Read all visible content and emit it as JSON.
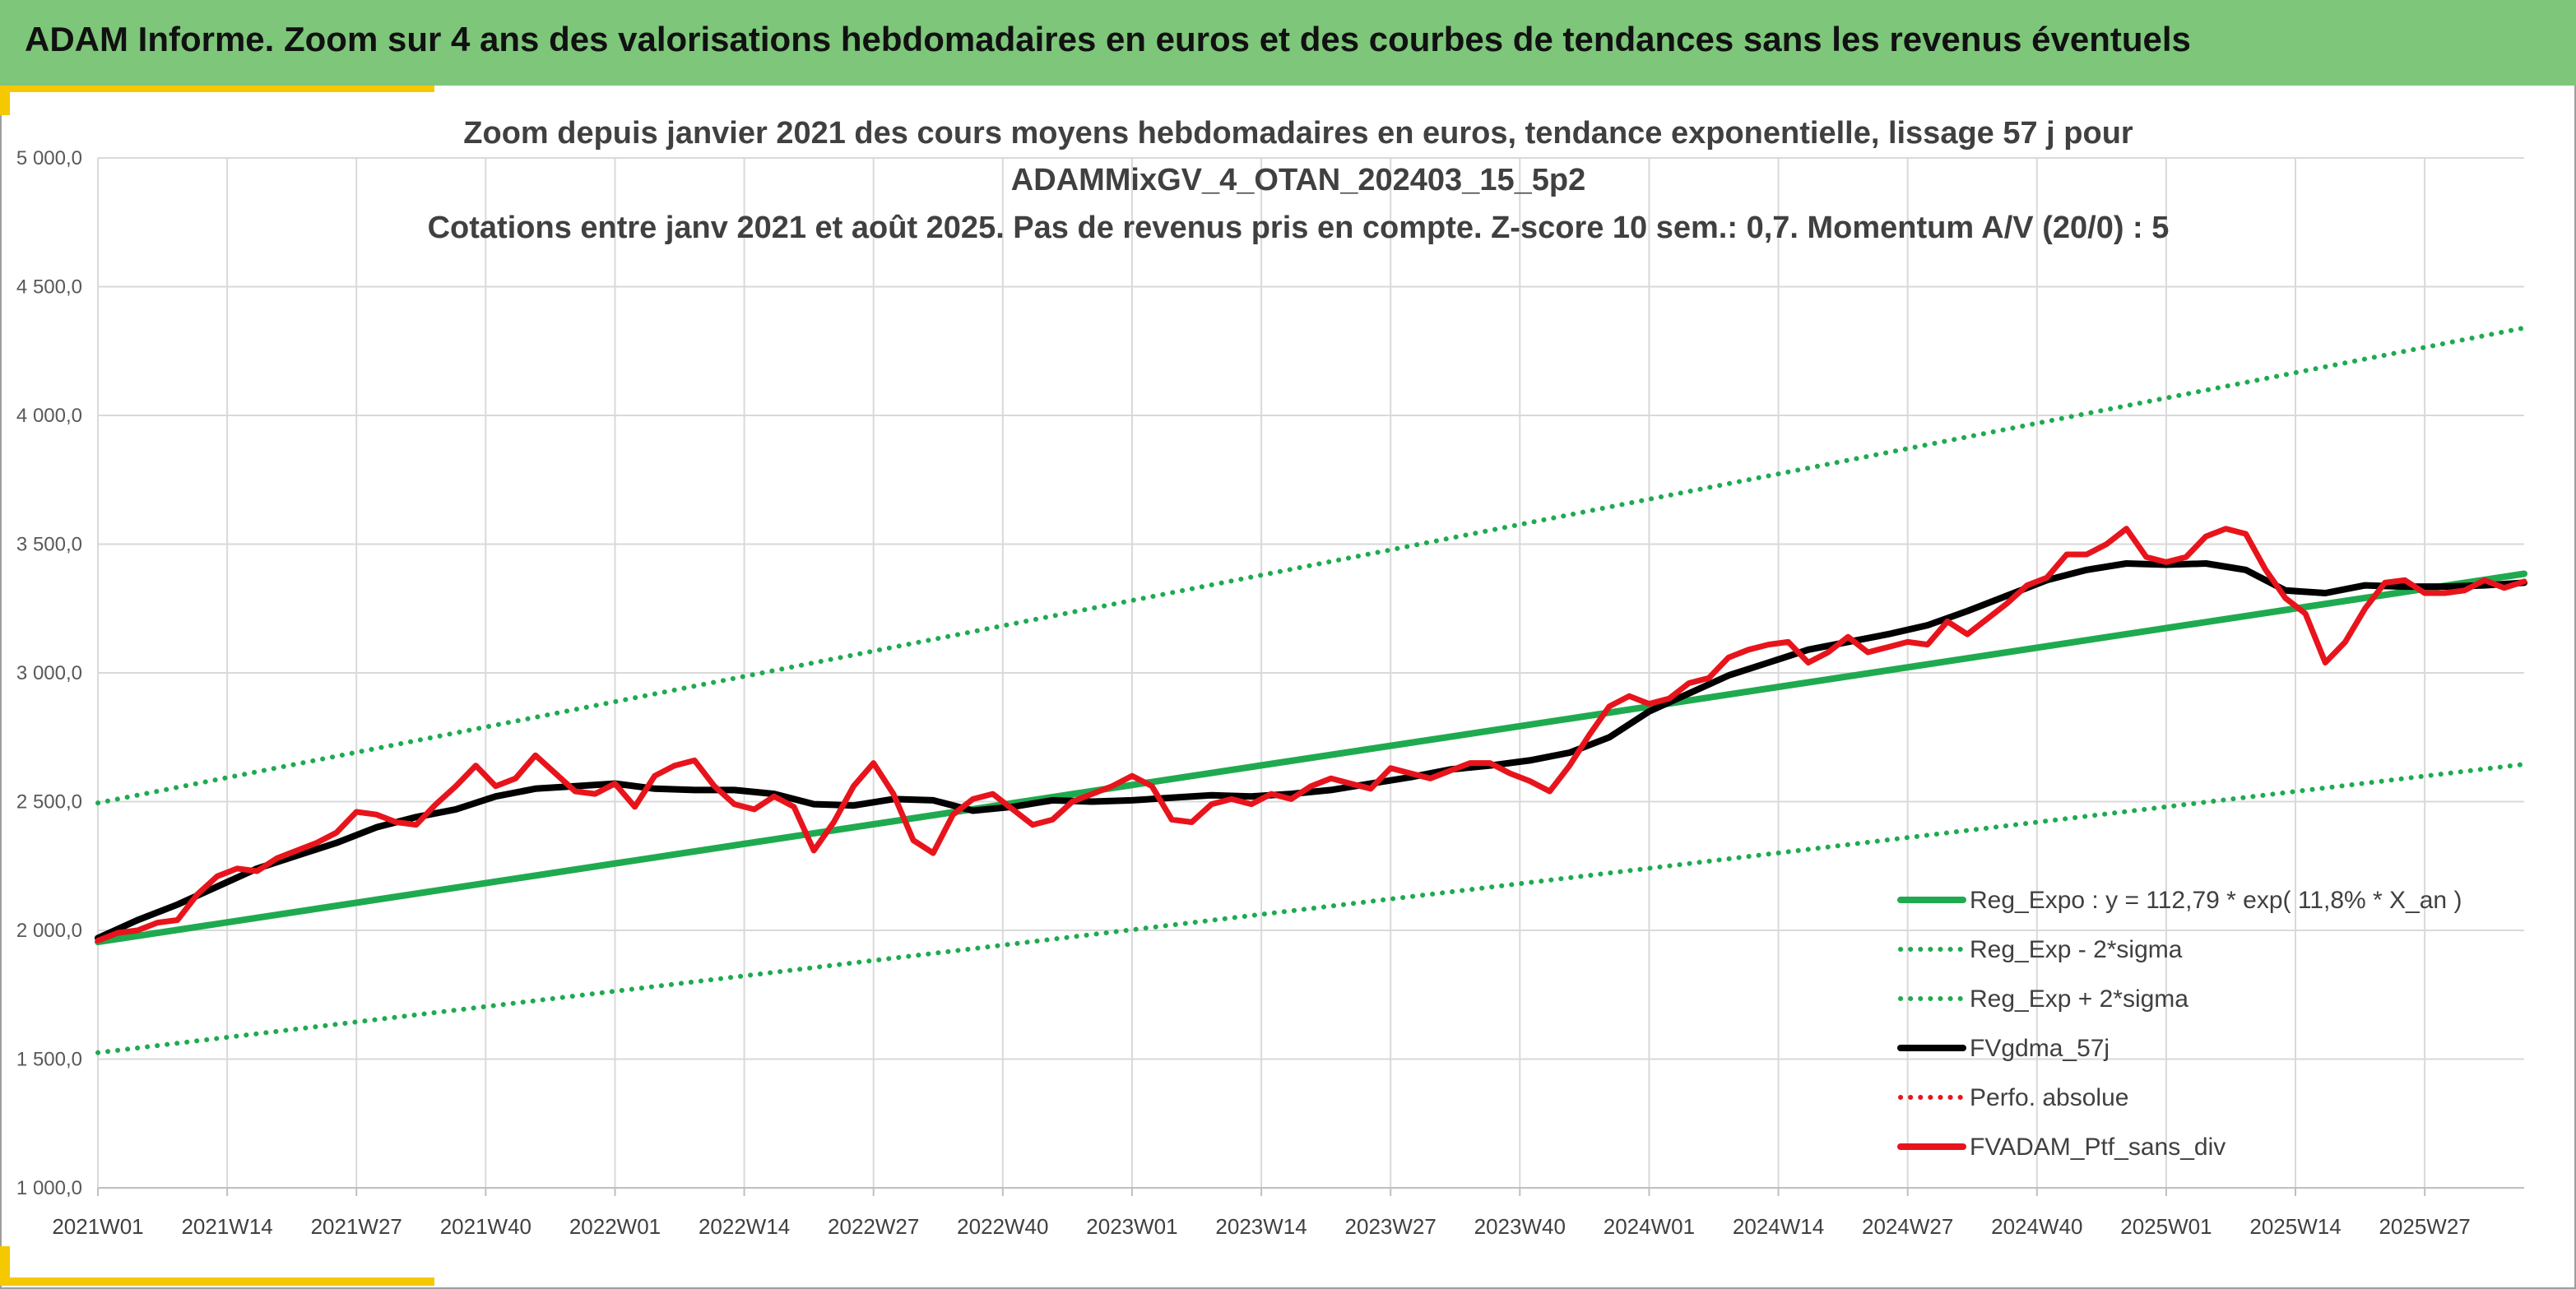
{
  "header": {
    "title": "ADAM Informe. Zoom sur 4 ans des valorisations hebdomadaires en euros et des courbes de tendances sans les revenus éventuels"
  },
  "colors": {
    "banner": "#7dc67a",
    "accent": "#f5c800",
    "trend": "#1faa50",
    "moving_average": "#000000",
    "portfolio": "#e8141c",
    "absolute": "#e8141c"
  },
  "chart_data": {
    "type": "line",
    "title_lines": [
      "Zoom depuis janvier 2021 des cours moyens hebdomadaires en euros, tendance exponentielle, lissage 57 j pour",
      "ADAMMixGV_4_OTAN_202403_15_5p2",
      "Cotations entre janv 2021 et août 2025. Pas de revenus pris en compte. Z-score 10 sem.: 0,7. Momentum A/V (20/0) : 5"
    ],
    "x_ticks": [
      "2021W01",
      "2021W14",
      "2021W27",
      "2021W40",
      "2022W01",
      "2022W14",
      "2022W27",
      "2022W40",
      "2023W01",
      "2023W14",
      "2023W27",
      "2023W40",
      "2024W01",
      "2024W14",
      "2024W27",
      "2024W40",
      "2025W01",
      "2025W14",
      "2025W27"
    ],
    "y_ticks": [
      "5 000,0",
      "4 500,0",
      "4 000,0",
      "3 500,0",
      "3 000,0",
      "2 500,0",
      "2 000,0",
      "1 500,0",
      "1 000,0"
    ],
    "ylim": [
      1000,
      5000
    ],
    "x_range_weeks": [
      0,
      244
    ],
    "grid": true,
    "legend_position": "bottom-right",
    "series": [
      {
        "name": "Reg_Expo : y = 112,79 * exp( 11,8% *  X_an )",
        "style": "solid",
        "color": "#1faa50",
        "x": [
          0,
          244
        ],
        "y": [
          1955,
          3385
        ]
      },
      {
        "name": "Reg_Exp - 2*sigma",
        "style": "dotted",
        "color": "#1faa50",
        "x": [
          0,
          244
        ],
        "y": [
          1525,
          2645
        ]
      },
      {
        "name": "Reg_Exp + 2*sigma",
        "style": "dotted",
        "color": "#1faa50",
        "x": [
          0,
          244
        ],
        "y": [
          2495,
          4340
        ]
      },
      {
        "name": "FVgdma_57j",
        "style": "solid",
        "color": "#000000",
        "x": [
          0,
          4,
          8,
          12,
          16,
          20,
          24,
          28,
          32,
          36,
          40,
          44,
          48,
          52,
          56,
          60,
          64,
          68,
          72,
          76,
          80,
          84,
          88,
          92,
          96,
          100,
          104,
          108,
          112,
          116,
          120,
          124,
          128,
          132,
          136,
          140,
          144,
          148,
          152,
          156,
          160,
          164,
          168,
          172,
          176,
          180,
          184,
          188,
          192,
          196,
          200,
          204,
          208,
          212,
          216,
          220,
          224,
          228,
          232,
          236,
          240,
          244
        ],
        "y": [
          1970,
          2040,
          2100,
          2170,
          2240,
          2290,
          2340,
          2400,
          2440,
          2470,
          2520,
          2550,
          2560,
          2570,
          2550,
          2545,
          2545,
          2530,
          2490,
          2485,
          2510,
          2505,
          2465,
          2480,
          2505,
          2500,
          2505,
          2515,
          2525,
          2520,
          2530,
          2545,
          2570,
          2595,
          2625,
          2640,
          2660,
          2690,
          2750,
          2850,
          2920,
          2990,
          3040,
          3090,
          3120,
          3150,
          3185,
          3240,
          3300,
          3360,
          3400,
          3425,
          3420,
          3425,
          3400,
          3320,
          3310,
          3340,
          3335,
          3335,
          3340,
          3350
        ]
      },
      {
        "name": "Perfo. absolue",
        "style": "dotted",
        "color": "#e8141c",
        "x": [],
        "y": []
      },
      {
        "name": "FVADAM_Ptf_sans_div",
        "style": "solid",
        "color": "#e8141c",
        "x": [
          0,
          2,
          4,
          6,
          8,
          10,
          12,
          14,
          16,
          18,
          20,
          22,
          24,
          26,
          28,
          30,
          32,
          34,
          36,
          38,
          40,
          42,
          44,
          46,
          48,
          50,
          52,
          54,
          56,
          58,
          60,
          62,
          64,
          66,
          68,
          70,
          72,
          74,
          76,
          78,
          80,
          82,
          84,
          86,
          88,
          90,
          92,
          94,
          96,
          98,
          100,
          102,
          104,
          106,
          108,
          110,
          112,
          114,
          116,
          118,
          120,
          122,
          124,
          126,
          128,
          130,
          132,
          134,
          136,
          138,
          140,
          142,
          144,
          146,
          148,
          150,
          152,
          154,
          156,
          158,
          160,
          162,
          164,
          166,
          168,
          170,
          172,
          174,
          176,
          178,
          180,
          182,
          184,
          186,
          188,
          190,
          192,
          194,
          196,
          198,
          200,
          202,
          204,
          206,
          208,
          210,
          212,
          214,
          216,
          218,
          220,
          222,
          224,
          226,
          228,
          230,
          232,
          234,
          236,
          238,
          240,
          242,
          244
        ],
        "y": [
          1960,
          1990,
          2000,
          2030,
          2040,
          2140,
          2210,
          2240,
          2230,
          2280,
          2310,
          2340,
          2380,
          2460,
          2450,
          2420,
          2410,
          2490,
          2560,
          2640,
          2560,
          2590,
          2680,
          2610,
          2540,
          2530,
          2570,
          2480,
          2600,
          2640,
          2660,
          2560,
          2490,
          2470,
          2520,
          2480,
          2310,
          2420,
          2560,
          2650,
          2530,
          2350,
          2300,
          2450,
          2510,
          2530,
          2470,
          2410,
          2430,
          2500,
          2530,
          2560,
          2600,
          2560,
          2430,
          2420,
          2490,
          2510,
          2490,
          2530,
          2510,
          2560,
          2590,
          2570,
          2550,
          2630,
          2610,
          2590,
          2620,
          2650,
          2650,
          2610,
          2580,
          2540,
          2640,
          2760,
          2870,
          2910,
          2880,
          2900,
          2960,
          2980,
          3060,
          3090,
          3110,
          3120,
          3040,
          3080,
          3140,
          3080,
          3100,
          3120,
          3110,
          3200,
          3150,
          3210,
          3270,
          3340,
          3370,
          3460,
          3460,
          3500,
          3560,
          3450,
          3430,
          3450,
          3530,
          3560,
          3540,
          3400,
          3290,
          3230,
          3040,
          3120,
          3250,
          3350,
          3360,
          3310,
          3310,
          3320,
          3360,
          3330,
          3355
        ]
      }
    ]
  }
}
